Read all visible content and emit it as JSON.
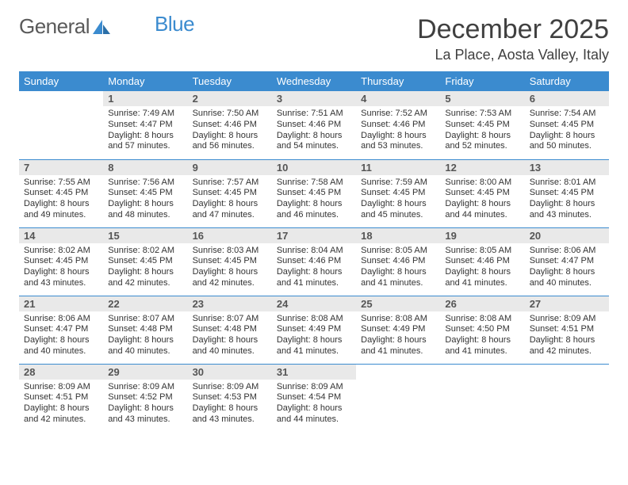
{
  "logo": {
    "text1": "General",
    "text2": "Blue"
  },
  "title": "December 2025",
  "location": "La Place, Aosta Valley, Italy",
  "colors": {
    "accent": "#3b8bcf",
    "dayBg": "#e9e9e9",
    "text": "#333333"
  },
  "weekdays": [
    "Sunday",
    "Monday",
    "Tuesday",
    "Wednesday",
    "Thursday",
    "Friday",
    "Saturday"
  ],
  "weeks": [
    [
      null,
      {
        "n": "1",
        "l": [
          "Sunrise: 7:49 AM",
          "Sunset: 4:47 PM",
          "Daylight: 8 hours",
          "and 57 minutes."
        ]
      },
      {
        "n": "2",
        "l": [
          "Sunrise: 7:50 AM",
          "Sunset: 4:46 PM",
          "Daylight: 8 hours",
          "and 56 minutes."
        ]
      },
      {
        "n": "3",
        "l": [
          "Sunrise: 7:51 AM",
          "Sunset: 4:46 PM",
          "Daylight: 8 hours",
          "and 54 minutes."
        ]
      },
      {
        "n": "4",
        "l": [
          "Sunrise: 7:52 AM",
          "Sunset: 4:46 PM",
          "Daylight: 8 hours",
          "and 53 minutes."
        ]
      },
      {
        "n": "5",
        "l": [
          "Sunrise: 7:53 AM",
          "Sunset: 4:45 PM",
          "Daylight: 8 hours",
          "and 52 minutes."
        ]
      },
      {
        "n": "6",
        "l": [
          "Sunrise: 7:54 AM",
          "Sunset: 4:45 PM",
          "Daylight: 8 hours",
          "and 50 minutes."
        ]
      }
    ],
    [
      {
        "n": "7",
        "l": [
          "Sunrise: 7:55 AM",
          "Sunset: 4:45 PM",
          "Daylight: 8 hours",
          "and 49 minutes."
        ]
      },
      {
        "n": "8",
        "l": [
          "Sunrise: 7:56 AM",
          "Sunset: 4:45 PM",
          "Daylight: 8 hours",
          "and 48 minutes."
        ]
      },
      {
        "n": "9",
        "l": [
          "Sunrise: 7:57 AM",
          "Sunset: 4:45 PM",
          "Daylight: 8 hours",
          "and 47 minutes."
        ]
      },
      {
        "n": "10",
        "l": [
          "Sunrise: 7:58 AM",
          "Sunset: 4:45 PM",
          "Daylight: 8 hours",
          "and 46 minutes."
        ]
      },
      {
        "n": "11",
        "l": [
          "Sunrise: 7:59 AM",
          "Sunset: 4:45 PM",
          "Daylight: 8 hours",
          "and 45 minutes."
        ]
      },
      {
        "n": "12",
        "l": [
          "Sunrise: 8:00 AM",
          "Sunset: 4:45 PM",
          "Daylight: 8 hours",
          "and 44 minutes."
        ]
      },
      {
        "n": "13",
        "l": [
          "Sunrise: 8:01 AM",
          "Sunset: 4:45 PM",
          "Daylight: 8 hours",
          "and 43 minutes."
        ]
      }
    ],
    [
      {
        "n": "14",
        "l": [
          "Sunrise: 8:02 AM",
          "Sunset: 4:45 PM",
          "Daylight: 8 hours",
          "and 43 minutes."
        ]
      },
      {
        "n": "15",
        "l": [
          "Sunrise: 8:02 AM",
          "Sunset: 4:45 PM",
          "Daylight: 8 hours",
          "and 42 minutes."
        ]
      },
      {
        "n": "16",
        "l": [
          "Sunrise: 8:03 AM",
          "Sunset: 4:45 PM",
          "Daylight: 8 hours",
          "and 42 minutes."
        ]
      },
      {
        "n": "17",
        "l": [
          "Sunrise: 8:04 AM",
          "Sunset: 4:46 PM",
          "Daylight: 8 hours",
          "and 41 minutes."
        ]
      },
      {
        "n": "18",
        "l": [
          "Sunrise: 8:05 AM",
          "Sunset: 4:46 PM",
          "Daylight: 8 hours",
          "and 41 minutes."
        ]
      },
      {
        "n": "19",
        "l": [
          "Sunrise: 8:05 AM",
          "Sunset: 4:46 PM",
          "Daylight: 8 hours",
          "and 41 minutes."
        ]
      },
      {
        "n": "20",
        "l": [
          "Sunrise: 8:06 AM",
          "Sunset: 4:47 PM",
          "Daylight: 8 hours",
          "and 40 minutes."
        ]
      }
    ],
    [
      {
        "n": "21",
        "l": [
          "Sunrise: 8:06 AM",
          "Sunset: 4:47 PM",
          "Daylight: 8 hours",
          "and 40 minutes."
        ]
      },
      {
        "n": "22",
        "l": [
          "Sunrise: 8:07 AM",
          "Sunset: 4:48 PM",
          "Daylight: 8 hours",
          "and 40 minutes."
        ]
      },
      {
        "n": "23",
        "l": [
          "Sunrise: 8:07 AM",
          "Sunset: 4:48 PM",
          "Daylight: 8 hours",
          "and 40 minutes."
        ]
      },
      {
        "n": "24",
        "l": [
          "Sunrise: 8:08 AM",
          "Sunset: 4:49 PM",
          "Daylight: 8 hours",
          "and 41 minutes."
        ]
      },
      {
        "n": "25",
        "l": [
          "Sunrise: 8:08 AM",
          "Sunset: 4:49 PM",
          "Daylight: 8 hours",
          "and 41 minutes."
        ]
      },
      {
        "n": "26",
        "l": [
          "Sunrise: 8:08 AM",
          "Sunset: 4:50 PM",
          "Daylight: 8 hours",
          "and 41 minutes."
        ]
      },
      {
        "n": "27",
        "l": [
          "Sunrise: 8:09 AM",
          "Sunset: 4:51 PM",
          "Daylight: 8 hours",
          "and 42 minutes."
        ]
      }
    ],
    [
      {
        "n": "28",
        "l": [
          "Sunrise: 8:09 AM",
          "Sunset: 4:51 PM",
          "Daylight: 8 hours",
          "and 42 minutes."
        ]
      },
      {
        "n": "29",
        "l": [
          "Sunrise: 8:09 AM",
          "Sunset: 4:52 PM",
          "Daylight: 8 hours",
          "and 43 minutes."
        ]
      },
      {
        "n": "30",
        "l": [
          "Sunrise: 8:09 AM",
          "Sunset: 4:53 PM",
          "Daylight: 8 hours",
          "and 43 minutes."
        ]
      },
      {
        "n": "31",
        "l": [
          "Sunrise: 8:09 AM",
          "Sunset: 4:54 PM",
          "Daylight: 8 hours",
          "and 44 minutes."
        ]
      },
      null,
      null,
      null
    ]
  ]
}
